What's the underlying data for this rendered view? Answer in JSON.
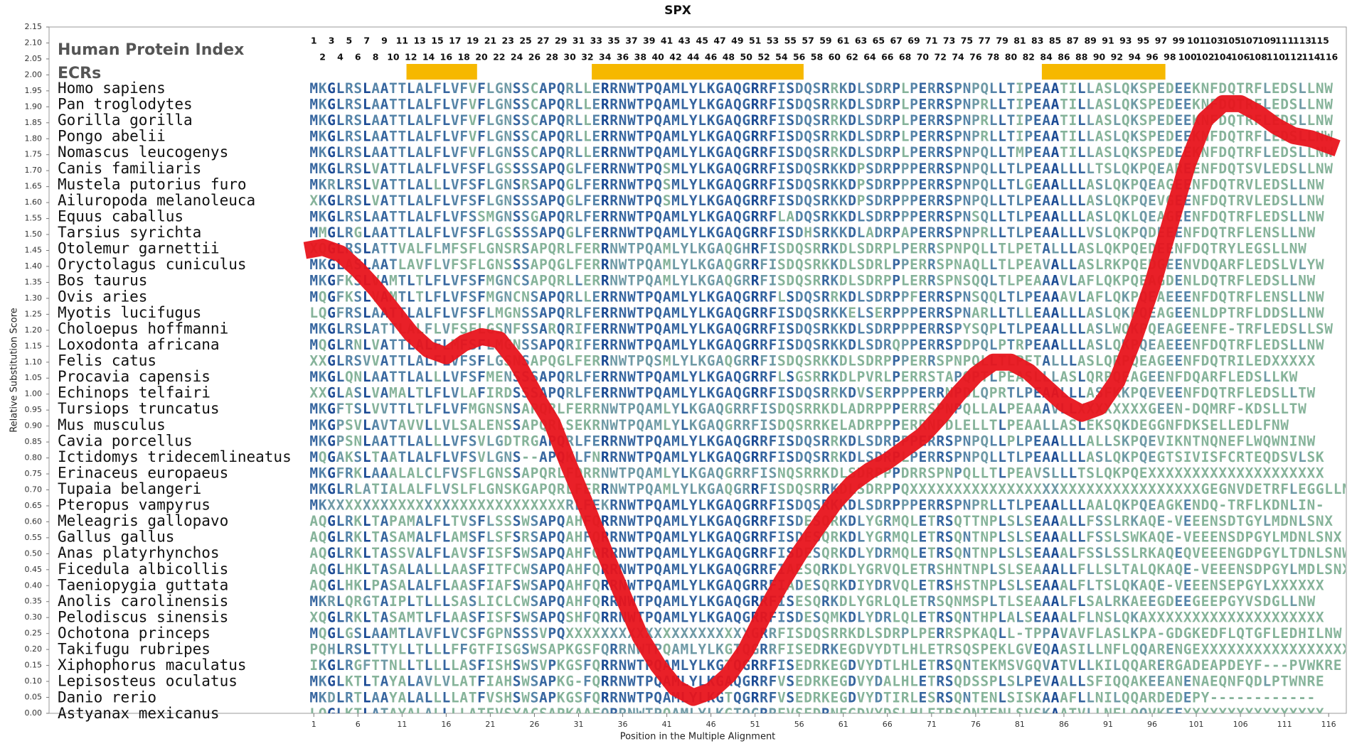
{
  "chart_data": {
    "type": "line",
    "title": "SPX",
    "xlabel": "Position in the Multiple Alignment",
    "ylabel": "Relative Substitution Score",
    "xlim": [
      -29,
      118
    ],
    "ylim": [
      0,
      2.15
    ],
    "xticks": [
      1,
      6,
      11,
      16,
      21,
      26,
      31,
      36,
      41,
      46,
      51,
      56,
      61,
      66,
      71,
      76,
      81,
      86,
      91,
      96,
      101,
      106,
      111,
      116
    ],
    "yticks": [
      {
        "value": 0,
        "label": "0.00"
      },
      {
        "value": 0.05,
        "label": "0.05"
      },
      {
        "value": 0.1,
        "label": "0.10"
      },
      {
        "value": 0.15,
        "label": "0.15"
      },
      {
        "value": 0.2,
        "label": "0.20"
      },
      {
        "value": 0.25,
        "label": "0.25"
      },
      {
        "value": 0.3,
        "label": "0.30"
      },
      {
        "value": 0.35,
        "label": "0.35"
      },
      {
        "value": 0.4,
        "label": "0.40"
      },
      {
        "value": 0.45,
        "label": "0.45"
      },
      {
        "value": 0.5,
        "label": "0.50"
      },
      {
        "value": 0.55,
        "label": "0.55"
      },
      {
        "value": 0.6,
        "label": "0.60"
      },
      {
        "value": 0.65,
        "label": "0.65"
      },
      {
        "value": 0.7,
        "label": "0.70"
      },
      {
        "value": 0.75,
        "label": "0.75"
      },
      {
        "value": 0.8,
        "label": "0.80"
      },
      {
        "value": 0.85,
        "label": "0.85"
      },
      {
        "value": 0.9,
        "label": "0.90"
      },
      {
        "value": 0.95,
        "label": "0.95"
      },
      {
        "value": 1,
        "label": "1.00"
      },
      {
        "value": 1.05,
        "label": "1.05"
      },
      {
        "value": 1.1,
        "label": "1.10"
      },
      {
        "value": 1.15,
        "label": "1.15"
      },
      {
        "value": 1.2,
        "label": "1.20"
      },
      {
        "value": 1.25,
        "label": "1.25"
      },
      {
        "value": 1.3,
        "label": "1.30"
      },
      {
        "value": 1.35,
        "label": "1.35"
      },
      {
        "value": 1.4,
        "label": "1.40"
      },
      {
        "value": 1.45,
        "label": "1.45"
      },
      {
        "value": 1.5,
        "label": "1.50"
      },
      {
        "value": 1.55,
        "label": "1.55"
      },
      {
        "value": 1.6,
        "label": "1.60"
      },
      {
        "value": 1.65,
        "label": "1.65"
      },
      {
        "value": 1.7,
        "label": "1.70"
      },
      {
        "value": 1.75,
        "label": "1.75"
      },
      {
        "value": 1.8,
        "label": "1.80"
      },
      {
        "value": 1.85,
        "label": "1.85"
      },
      {
        "value": 1.9,
        "label": "1.90"
      },
      {
        "value": 1.95,
        "label": "1.95"
      },
      {
        "value": 2,
        "label": "2.00"
      },
      {
        "value": 2.05,
        "label": "2.05"
      },
      {
        "value": 2.1,
        "label": "2.10"
      },
      {
        "value": 2.15,
        "label": "2.15"
      }
    ],
    "series": [
      {
        "color": "#e8141c",
        "x": [
          0,
          2,
          4,
          6,
          8,
          10,
          12,
          14,
          16,
          18,
          20,
          22,
          24,
          26,
          28,
          30,
          32,
          34,
          36,
          38,
          40,
          42,
          44,
          46,
          48,
          50,
          52,
          54,
          56,
          58,
          60,
          62,
          64,
          66,
          68,
          70,
          72,
          74,
          76,
          78,
          80,
          82,
          84,
          86,
          88,
          90,
          92,
          94,
          96,
          98,
          100,
          102,
          104,
          106,
          108,
          110,
          112,
          114,
          116,
          117
        ],
        "values": [
          1.45,
          1.46,
          1.44,
          1.39,
          1.33,
          1.26,
          1.19,
          1.14,
          1.12,
          1.16,
          1.18,
          1.17,
          1.1,
          1.0,
          0.91,
          0.77,
          0.64,
          0.5,
          0.37,
          0.24,
          0.15,
          0.08,
          0.05,
          0.07,
          0.12,
          0.2,
          0.31,
          0.41,
          0.5,
          0.58,
          0.66,
          0.72,
          0.76,
          0.79,
          0.83,
          0.87,
          0.93,
          1.0,
          1.06,
          1.1,
          1.1,
          1.07,
          1.02,
          0.97,
          0.94,
          0.96,
          1.04,
          1.18,
          1.34,
          1.53,
          1.72,
          1.86,
          1.91,
          1.91,
          1.88,
          1.84,
          1.81,
          1.8,
          1.78,
          1.77
        ]
      }
    ]
  },
  "alignment": {
    "index_label": "Human Protein Index",
    "ecr_label": "ECRs",
    "index_odd": [
      1,
      3,
      5,
      7,
      9,
      11,
      13,
      15,
      17,
      19,
      21,
      23,
      25,
      27,
      29,
      31,
      33,
      35,
      37,
      39,
      41,
      43,
      45,
      47,
      49,
      51,
      53,
      55,
      57,
      59,
      61,
      63,
      65,
      67,
      69,
      71,
      73,
      75,
      77,
      79,
      81,
      83,
      85,
      87,
      89,
      91,
      93,
      95,
      97,
      99,
      101,
      103,
      105,
      107,
      109,
      111,
      113,
      115
    ],
    "index_even": [
      2,
      4,
      6,
      8,
      10,
      12,
      14,
      16,
      18,
      20,
      22,
      24,
      26,
      28,
      30,
      32,
      34,
      36,
      38,
      40,
      42,
      44,
      46,
      48,
      50,
      52,
      54,
      56,
      58,
      60,
      62,
      64,
      66,
      68,
      70,
      72,
      74,
      76,
      78,
      80,
      82,
      84,
      86,
      88,
      90,
      92,
      94,
      96,
      98,
      100,
      102,
      104,
      106,
      108,
      110,
      112,
      114,
      116
    ],
    "ecrs": [
      [
        12,
        19
      ],
      [
        33,
        56
      ],
      [
        84,
        97
      ]
    ],
    "rows": [
      {
        "species": "Homo sapiens",
        "sequence": "MKGLRSLAATTLALFLVFVFLGNSSCAPQRLLERRNWTPQAMLYLKGAQGRRFISDQSRRKDLSDRPLPERRSPNPQLLTIPEAATILLASLQKSPEDEEKNFDQTRFLEDSLLNW"
      },
      {
        "species": "Pan troglodytes",
        "sequence": "MKGLRSLAATTLALFLVFVFLGNSSCAPQRLLERRNWTPQAMLYLKGAQGRRFISDQSRRKDLSDRPLPERRSPNPRLLTIPEAATILLASLQKSPEDEEKNFDQTRFLEDSLLNW"
      },
      {
        "species": "Gorilla gorilla",
        "sequence": "MKGLRSLAATTLALFLVFVFLGNSSCAPQRLLERRNWTPQAMLYLKGAQGRRFISDQSRRKDLSDRPLPERRSPNPRLLTIPEAATILLASLQKSPEDEEKNFDQTRFLEDSLLNW"
      },
      {
        "species": "Pongo abelii",
        "sequence": "MKGLRSLAATTLALFLVFVFLGNSSCAPQRLLERRNWTPQAMLYLKGAQGRRFISDQSRRKDLSDRPLPERRSPNPRLLTIPEAATILLASLQKSPEDEEKNFDQTRFLEDSLLNW"
      },
      {
        "species": "Nomascus leucogenys",
        "sequence": "MKGLRSLAATTLALFLVFVFLGNSSCAPQRLLERRNWTPQAMLYLKGAQGRRFISDQSRRKDLSDRPLPERRSPNPQLLTMPEAATILLASLQKSPEDEEKNFDQTRFLEDSLLNW"
      },
      {
        "species": "Canis familiaris",
        "sequence": "MKGLRSLVATTLALFLVFSFLGSSSSAPQGLFERRNWTPQSMLYLKGAQGRRFISDQSRKKDPSDRPPPERRSPNPQLLTLPEAALLLLTSLQKPQEAREENFDQTSVLEDSLLNW"
      },
      {
        "species": "Mustela putorius furo",
        "sequence": "MKRLRSLVATTLALLLVFSFLGNSRSAPQGLFERRNWTPQSMLYLKGAQGRRFISDQSRKKDPSDRPPPERRSPNPQLLTLGEAALLLASLQKPQEAGEENFDQTRVLEDSLLNW"
      },
      {
        "species": "Ailuropoda melanoleuca",
        "sequence": "XKGLRSLVATTLALFLVFSFLGNSSSAPQGLFERRNWTPQSMLYLKGAQGRRFISDQSRKKDPSDRPPPERRSPNPQLLTLPEAALLLASLQKPQEVGEENFDQTRVLEDSLLNW"
      },
      {
        "species": "Equus caballus",
        "sequence": "MKGLRSLAATTLALFLVFSSMGNSSGAPQRLFERRNWTPQAMLYLKGAQGRRFLADQSRKKDLSDRPPPERRSPNSQLLTLPEAALLLASLQKLQEAGEENFDQTRFLEDSLLNW"
      },
      {
        "species": "Tarsius syrichta",
        "sequence": "MMGLRGLAATTLALFLVFSFLGSSSSAPQGLFERRNWTPQAMLYLKGAQGRRFISDHSRKKDLADRPAPERRSPNPRLLTLPEAALLLVSLQKPQDEEENFDQTRFLENSLLNW"
      },
      {
        "species": "Otolemur garnettii",
        "sequence": "XQGLRSLATTVALFLMFSFLGNSRSAPQRLFERRNWTPQAMLYLKGAQGHRFISDQSRRKDLSDRPLPERRSPNPQLLTLPETALLLASLQKPQEDEENFDQTRYLEGSLLNW"
      },
      {
        "species": "Oryctolagus cuniculus",
        "sequence": "MKGLASLAATLAVFLVFSFLGNSSSAPQGLFERRNWTPQAMLYLKGAQGRRFISDQSRKKDLSDRLPPERRSPNAQLLTLPEAVALLASLRKPQEDGEENVDQARFLEDSLVLYW"
      },
      {
        "species": "Bos taurus",
        "sequence": "MKGFKSLVAMTLTLFLVFSFMGNCSAPQRLLERRNWTPQAMLYLKGAQGRRFISDQSRRKDLSDRPPLERRSPNSQQLTLPEAAAVLAFLQKPQEAGDENLDQTRFLEDSLLNW"
      },
      {
        "species": "Ovis aries",
        "sequence": "MQGFKSLVAMTLTLFLVFSFMGNCNSAPQRLLERRNWTPQAMLYLKGAQGRRFLSDQSRRKDLSDRPPFERRSPNSQQLTLPEAAAVLAFLQKPQEAEEENFDQTRFLENSLLNW"
      },
      {
        "species": "Myotis lucifugus",
        "sequence": "LQGFRSLAATTLALFLVFSFLMGNSSAPQRLFERRNWTPQAMLYLKGAQGRRFISDQSRKKELSERPPPERRSPNARLLTLLEAALLLASLQKPQEAGEENLDPTRFLDDSLLNW"
      },
      {
        "species": "Choloepus hoffmanni",
        "sequence": "MKGLRSLATTLALFLVFSFLGSNFSSARQRIFERRNWTPQAMLYLKGAQGRRFISDQSRKKDLSDRPPPERRSPYSQPLTLPEAALLLASLWQKPQEAGEENFE-TRFLEDSLLSW"
      },
      {
        "species": "Loxodonta africana",
        "sequence": "MQGLRNLVATTLALFLMFSFLMGNSSAPQRIFERRNWTPQAMLYLKGAQGRRFISDQSRKKDLSDRQPPERRSPDPQLPTRPEAALLLASLQKPQEAEEENFDQTRFLEDSLLNW"
      },
      {
        "species": "Felis catus",
        "sequence": "XXGLRSVVATTLALFLVFSFLGSNSAPQGLFERRNWTPQSMLYLKGAQGRRFISDQSRKKDLSDRPPPERRSPNPQLLTLPETALLLASLQRPQEAGEENFDQTRILEDXXXXX"
      },
      {
        "species": "Procavia capensis",
        "sequence": "MKGLQNLAATTLALLLVFSFMENSSSAPQRLFERRNWTPQAMLYLKGAQGRRFLSGSRRKDLPVRLPERRSTAPQPTLPEASLLLASLQRPQEAGEENFDQARFLEDSLLKW"
      },
      {
        "species": "Echinops telfairi",
        "sequence": "XXGLASLVAMALTLFLVLAFIRDSSSAPQRLFERRNWTPQAMLYLKGAQGRRFISDQSRRKDVSERPPPERRNPDLQPRTLPEAALLLASFKKPQEVEENFDQTRFLEDSLLTW"
      },
      {
        "species": "Tursiops truncatus",
        "sequence": "MKGFTSLVVTTLTLFLVFMGNSNSAPQRLFERRNWTPQAMLYLKGAQGRRFISDQSRRKDLADRPPPERRSPNPQLLALPEAAAVLLXXXXXXXXGEEN-DQMRF-KDSLLTW"
      },
      {
        "species": "Mus musculus",
        "sequence": "MKGPSVLAVTAVVLLVLSALENSSAPQRLSEKRNWTPQAMLYLKGAQGRRFISDQSRRKELADRPPPERRNPDLELLTLPEAALLASLEKSQKDEGGNFDKSELLEDLFNW"
      },
      {
        "species": "Cavia porcellus",
        "sequence": "MKGPSNLAATTLALLLVFSVLGDTRGAPQRLFERRNWTPQAMLYLKGAQGRRFISDQSRRKDLSDRPPPERRSPNPQLLPLPEAALLLALLSKPQEVIKNTNQNEFLWQWNINW"
      },
      {
        "species": "Ictidomys tridecemlineatus",
        "sequence": "MQGAKSLTAATLALFLVFSVLGNS--APQKLFNRRNWTPQAMLYLKGAQGRRFISDQSRRKDLSDRPLPERRSPNPQLLTLPEAALLLASLQKPQEGTSIVISFCRTEQDSVLSK"
      },
      {
        "species": "Erinaceus europaeus",
        "sequence": "MKGFRKLAAALALCLFVSFLGNSSAPQRLFDRRNWTPQAMLYLKGAQGRRFISNQSRRKDLSDRPPPDRRSPNPQLLTLPEAVSLLLTSLQKPQEXXXXXXXXXXXXXXXXXXXX"
      },
      {
        "species": "Tupaia belangeri",
        "sequence": "MKGLRLATIALALFLVSLFLGNSKGAPQRLFERRNWTPQAMLYLKGAQGRRFISDQSRRKDLSDRPPQXXXXXXXXXXXXXXXXXXXXXXXXXXXXXXXXXGEGNVDETRFLEGGLLNW"
      },
      {
        "species": "Pteropus vampyrus",
        "sequence": "MKXXXXXXXXXXXXXXXXXXXXXXXXXXXRLFEKRNWTPQAMLYLKGAQGRRFISDQSRKKDLSDRPPPERRSPNPRLLTLPEAALLLAALQKPQEAGKENDQ-TRFLKDNLIN-"
      },
      {
        "species": "Meleagris gallopavo",
        "sequence": "AQGLRKLTAPAMALFLTVSFLSSSWSAPQAHFQRRNWTPQAMLYLKGAQGRRFISDESQRKDLYGRMQLETRSQTTNPLSLSEAAALLFSSLRKAQE-VEEENSDTGYLMDNLSNX"
      },
      {
        "species": "Gallus gallus",
        "sequence": "AQGLRKLTASAMALFLAMSFLSFSRSAPQAHFQRRNWTPQAMLYLKGAQGRRFISDESQRKDLYGRMQLETRSQNTNPLSLSEAAALLFSSLSWKAQE-VEEENSDPGYLMDNLSNX"
      },
      {
        "species": "Anas platyrhynchos",
        "sequence": "AQGLRKLTASSVALFLAVSFISFSWSAPQAHFQRRNWTPQAMLYLKGAQGRRFISDESQRKDLYDRMQLETRSQNTNPLSLSEAAALFSSLSSLRKAQEQVEEENGDPGYLTDNLSNW"
      },
      {
        "species": "Ficedula albicollis",
        "sequence": "AQGLHKLTASALALLLAASFITFCWSAPQAHFQRRNWTPQAMLYLKGAQGRRFIAESQRKDLYGRVQLETRSHNTNPLSLSEAAALLFLLSLTALQKAQE-VEEENSDPGYLMDLSNX"
      },
      {
        "species": "Taeniopygia guttata",
        "sequence": "AQGLHKLPASALALFLAASFIAFSWSAPQAHFQRRNWTPQAMLYLKGAQGRRFIADESQRKDIYDRVQLETRSHSTNPLSLSEAAALFLTSLQKAQE-VEEENSEPGYLXXXXXX"
      },
      {
        "species": "Anolis carolinensis",
        "sequence": "MKRLQRGTAIPLTLLLSASLICLCWSAPQAHFQRRNWTPQAMLYLKGAQGRRFISESQRKDLYGRLQLETRSQNMSPLTLSEAAALFLSALRKAEEGDEEGEEPGYVSDGLLNW"
      },
      {
        "species": "Pelodiscus sinensis",
        "sequence": "XQGLRKLTASAMTLFLAASFISFSWSAPQSHFQRRNWTPQAMLYLKGAQGRRFISDESQMKDLYDRLQLETRSQNTHPLALSEAAALFLNSLQKAXXXXXXXXXXXXXXXXXXXX"
      },
      {
        "species": "Ochotona princeps",
        "sequence": "MQGLGSLAAMTLAVFLVCSFGPNSSSVPQXXXXXXXXXXXXXXXXXXXXXGRRFISDQSRRKDLSDRPLPERRSPKAQLL-TPPAVAVFLASLKPA-GDGKEDFLQTGFLEDHILNW"
      },
      {
        "species": "Takifugu rubripes",
        "sequence": "PQHLRSLTTYLLTLLLFFGTFISGSWSAPKGSFQRRNWTPQAMLYLKGTQGRRFISEDRKEGDVYDTLHLETRSQSPEKLGVEQAASILLNFLQQARENGEXXXXXXXXXXXXXXXXX"
      },
      {
        "species": "Xiphophorus maculatus",
        "sequence": "IKGLRGFTTNLLTLLLLASFISHSWSVPKGSFQRRNWTPQAMLYLKGTQGRRFISEDRKEGDVYDTLHLETRSQNTEKMSVGQVATVLLKILQQARERGADEAPDEYF---PVWKRE"
      },
      {
        "species": "Lepisosteus oculatus",
        "sequence": "MKGLKTLTAYALAVLVLATFIAHSWSAPKG-FQRRNWTPQAMLYLKGAQGRRFVSEDRKEGDVYDALHLETRSQDSSPLSLPEVAALLSFIQQAKEEANENAEQNFQDLPTWNRE"
      },
      {
        "species": "Danio rerio",
        "sequence": "MKDLRTLAAYALALLLLATFVSHSWSAPKGSFQRRNWTPQAMLYLKGTQGRRFVSEDRKEGDVYDTIRLESRSQNTENLSISKAAAFLLNILQQARDEDEPY------------"
      },
      {
        "species": "Astyanax mexicanus",
        "sequence": "LQGLKTLATAYALALLLLATFVSYACSAPKAAFQRRNWTPQAMLYLKGTQGRRFVSEDRNEGDVYDSLHLETRSQNTENLSVSKAATVLLNFLQQVKEEXXXXXXXXXXXXXXXX"
      }
    ]
  }
}
